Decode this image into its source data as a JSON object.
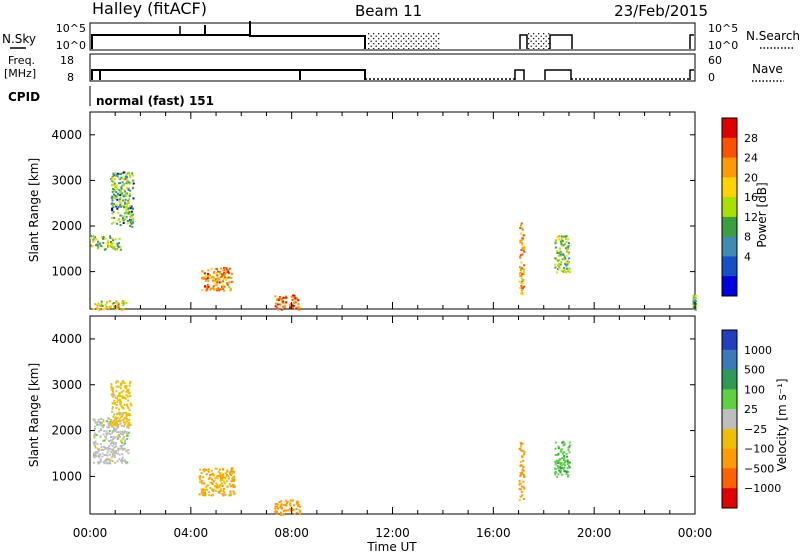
{
  "header": {
    "station": "Halley (fitACF)",
    "beam": "Beam 11",
    "date": "23/Feb/2015"
  },
  "status_strips": {
    "nsky_label": "N.Sky",
    "nsky_ticks": [
      "10^5",
      "10^0"
    ],
    "nsearch_label": "N.Search",
    "nsearch_ticks": [
      "10^5",
      "10^0"
    ],
    "freq_label": "Freq.",
    "freq_unit": "[MHz]",
    "freq_ticks": [
      "18",
      "8"
    ],
    "nave_label": "Nave",
    "nave_ticks": [
      "60",
      "0"
    ],
    "cpid_label": "CPID",
    "cpid_value": "normal (fast) 151"
  },
  "chart_data": [
    {
      "type": "heatmap",
      "name": "power",
      "ylabel": "Slant Range [km]",
      "ylim": [
        180,
        4500
      ],
      "yticks": [
        1000,
        2000,
        3000,
        4000
      ],
      "xlim": [
        0,
        24
      ],
      "colorbar": {
        "label": "Power [dB]",
        "ticks": [
          "28",
          "24",
          "20",
          "16",
          "12",
          "8",
          "4"
        ],
        "colors": [
          "#e00000",
          "#ff5000",
          "#ff9a00",
          "#ffd200",
          "#a8e000",
          "#38a040",
          "#3c8cb4",
          "#1450c8",
          "#0000e0"
        ]
      },
      "echo_regions": [
        {
          "t": [
            0.1,
            1.4
          ],
          "range": [
            180,
            380
          ],
          "value": "low-mixed"
        },
        {
          "t": [
            0.0,
            1.2
          ],
          "range": [
            1500,
            1800
          ],
          "value": 12
        },
        {
          "t": [
            0.8,
            1.7
          ],
          "range": [
            2000,
            3200
          ],
          "value": 10
        },
        {
          "t": [
            4.4,
            5.6
          ],
          "range": [
            600,
            1100
          ],
          "value": 22
        },
        {
          "t": [
            7.3,
            8.3
          ],
          "range": [
            180,
            500
          ],
          "value": 26
        },
        {
          "t": [
            17.0,
            17.2
          ],
          "range": [
            500,
            2100
          ],
          "value": 20
        },
        {
          "t": [
            18.4,
            19.0
          ],
          "range": [
            1000,
            1800
          ],
          "value": 12
        },
        {
          "t": [
            23.9,
            24.0
          ],
          "range": [
            180,
            500
          ],
          "value": 10
        }
      ]
    },
    {
      "type": "heatmap",
      "name": "velocity",
      "ylabel": "Slant Range [km]",
      "ylim": [
        180,
        4500
      ],
      "yticks": [
        1000,
        2000,
        3000,
        4000
      ],
      "xlim": [
        0,
        24
      ],
      "xlabel": "Time UT",
      "xticks": [
        "00:00",
        "04:00",
        "08:00",
        "12:00",
        "16:00",
        "20:00",
        "00:00"
      ],
      "colorbar": {
        "label": "Velocity [m s⁻¹]",
        "ticks": [
          "1000",
          "500",
          "100",
          "25",
          "−25",
          "−100",
          "−500",
          "−1000"
        ],
        "colors": [
          "#2040c0",
          "#3a7ab8",
          "#2f9a58",
          "#5fd040",
          "#bebebe",
          "#f0c000",
          "#ff9a00",
          "#ff6000",
          "#e00000"
        ]
      },
      "echo_regions": [
        {
          "t": [
            0.1,
            1.5
          ],
          "range": [
            1300,
            2300
          ],
          "value": 0
        },
        {
          "t": [
            0.8,
            1.6
          ],
          "range": [
            2100,
            3100
          ],
          "value": -50
        },
        {
          "t": [
            4.3,
            5.7
          ],
          "range": [
            600,
            1200
          ],
          "value": -100
        },
        {
          "t": [
            7.3,
            8.3
          ],
          "range": [
            180,
            500
          ],
          "value": -300
        },
        {
          "t": [
            17.0,
            17.2
          ],
          "range": [
            500,
            1800
          ],
          "value": -150
        },
        {
          "t": [
            18.4,
            19.0
          ],
          "range": [
            1000,
            1800
          ],
          "value": 80
        }
      ]
    }
  ]
}
